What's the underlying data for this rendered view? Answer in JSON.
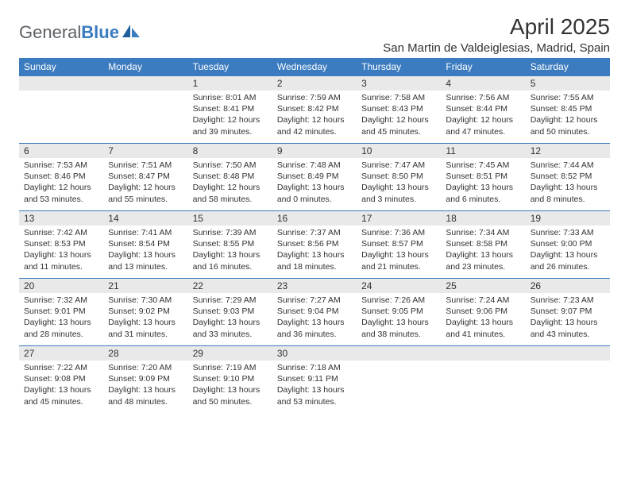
{
  "brand": {
    "part1": "General",
    "part2": "Blue"
  },
  "title": "April 2025",
  "location": "San Martin de Valdeiglesias, Madrid, Spain",
  "theme": {
    "header_bg": "#3b7bbf",
    "header_fg": "#ffffff",
    "daynum_bg": "#e9e9e9",
    "text": "#323232",
    "rule": "#3b7bbf"
  },
  "weekdays": [
    "Sunday",
    "Monday",
    "Tuesday",
    "Wednesday",
    "Thursday",
    "Friday",
    "Saturday"
  ],
  "weeks": [
    [
      {
        "n": "",
        "sunrise": "",
        "sunset": "",
        "daylight": ""
      },
      {
        "n": "",
        "sunrise": "",
        "sunset": "",
        "daylight": ""
      },
      {
        "n": "1",
        "sunrise": "Sunrise: 8:01 AM",
        "sunset": "Sunset: 8:41 PM",
        "daylight": "Daylight: 12 hours and 39 minutes."
      },
      {
        "n": "2",
        "sunrise": "Sunrise: 7:59 AM",
        "sunset": "Sunset: 8:42 PM",
        "daylight": "Daylight: 12 hours and 42 minutes."
      },
      {
        "n": "3",
        "sunrise": "Sunrise: 7:58 AM",
        "sunset": "Sunset: 8:43 PM",
        "daylight": "Daylight: 12 hours and 45 minutes."
      },
      {
        "n": "4",
        "sunrise": "Sunrise: 7:56 AM",
        "sunset": "Sunset: 8:44 PM",
        "daylight": "Daylight: 12 hours and 47 minutes."
      },
      {
        "n": "5",
        "sunrise": "Sunrise: 7:55 AM",
        "sunset": "Sunset: 8:45 PM",
        "daylight": "Daylight: 12 hours and 50 minutes."
      }
    ],
    [
      {
        "n": "6",
        "sunrise": "Sunrise: 7:53 AM",
        "sunset": "Sunset: 8:46 PM",
        "daylight": "Daylight: 12 hours and 53 minutes."
      },
      {
        "n": "7",
        "sunrise": "Sunrise: 7:51 AM",
        "sunset": "Sunset: 8:47 PM",
        "daylight": "Daylight: 12 hours and 55 minutes."
      },
      {
        "n": "8",
        "sunrise": "Sunrise: 7:50 AM",
        "sunset": "Sunset: 8:48 PM",
        "daylight": "Daylight: 12 hours and 58 minutes."
      },
      {
        "n": "9",
        "sunrise": "Sunrise: 7:48 AM",
        "sunset": "Sunset: 8:49 PM",
        "daylight": "Daylight: 13 hours and 0 minutes."
      },
      {
        "n": "10",
        "sunrise": "Sunrise: 7:47 AM",
        "sunset": "Sunset: 8:50 PM",
        "daylight": "Daylight: 13 hours and 3 minutes."
      },
      {
        "n": "11",
        "sunrise": "Sunrise: 7:45 AM",
        "sunset": "Sunset: 8:51 PM",
        "daylight": "Daylight: 13 hours and 6 minutes."
      },
      {
        "n": "12",
        "sunrise": "Sunrise: 7:44 AM",
        "sunset": "Sunset: 8:52 PM",
        "daylight": "Daylight: 13 hours and 8 minutes."
      }
    ],
    [
      {
        "n": "13",
        "sunrise": "Sunrise: 7:42 AM",
        "sunset": "Sunset: 8:53 PM",
        "daylight": "Daylight: 13 hours and 11 minutes."
      },
      {
        "n": "14",
        "sunrise": "Sunrise: 7:41 AM",
        "sunset": "Sunset: 8:54 PM",
        "daylight": "Daylight: 13 hours and 13 minutes."
      },
      {
        "n": "15",
        "sunrise": "Sunrise: 7:39 AM",
        "sunset": "Sunset: 8:55 PM",
        "daylight": "Daylight: 13 hours and 16 minutes."
      },
      {
        "n": "16",
        "sunrise": "Sunrise: 7:37 AM",
        "sunset": "Sunset: 8:56 PM",
        "daylight": "Daylight: 13 hours and 18 minutes."
      },
      {
        "n": "17",
        "sunrise": "Sunrise: 7:36 AM",
        "sunset": "Sunset: 8:57 PM",
        "daylight": "Daylight: 13 hours and 21 minutes."
      },
      {
        "n": "18",
        "sunrise": "Sunrise: 7:34 AM",
        "sunset": "Sunset: 8:58 PM",
        "daylight": "Daylight: 13 hours and 23 minutes."
      },
      {
        "n": "19",
        "sunrise": "Sunrise: 7:33 AM",
        "sunset": "Sunset: 9:00 PM",
        "daylight": "Daylight: 13 hours and 26 minutes."
      }
    ],
    [
      {
        "n": "20",
        "sunrise": "Sunrise: 7:32 AM",
        "sunset": "Sunset: 9:01 PM",
        "daylight": "Daylight: 13 hours and 28 minutes."
      },
      {
        "n": "21",
        "sunrise": "Sunrise: 7:30 AM",
        "sunset": "Sunset: 9:02 PM",
        "daylight": "Daylight: 13 hours and 31 minutes."
      },
      {
        "n": "22",
        "sunrise": "Sunrise: 7:29 AM",
        "sunset": "Sunset: 9:03 PM",
        "daylight": "Daylight: 13 hours and 33 minutes."
      },
      {
        "n": "23",
        "sunrise": "Sunrise: 7:27 AM",
        "sunset": "Sunset: 9:04 PM",
        "daylight": "Daylight: 13 hours and 36 minutes."
      },
      {
        "n": "24",
        "sunrise": "Sunrise: 7:26 AM",
        "sunset": "Sunset: 9:05 PM",
        "daylight": "Daylight: 13 hours and 38 minutes."
      },
      {
        "n": "25",
        "sunrise": "Sunrise: 7:24 AM",
        "sunset": "Sunset: 9:06 PM",
        "daylight": "Daylight: 13 hours and 41 minutes."
      },
      {
        "n": "26",
        "sunrise": "Sunrise: 7:23 AM",
        "sunset": "Sunset: 9:07 PM",
        "daylight": "Daylight: 13 hours and 43 minutes."
      }
    ],
    [
      {
        "n": "27",
        "sunrise": "Sunrise: 7:22 AM",
        "sunset": "Sunset: 9:08 PM",
        "daylight": "Daylight: 13 hours and 45 minutes."
      },
      {
        "n": "28",
        "sunrise": "Sunrise: 7:20 AM",
        "sunset": "Sunset: 9:09 PM",
        "daylight": "Daylight: 13 hours and 48 minutes."
      },
      {
        "n": "29",
        "sunrise": "Sunrise: 7:19 AM",
        "sunset": "Sunset: 9:10 PM",
        "daylight": "Daylight: 13 hours and 50 minutes."
      },
      {
        "n": "30",
        "sunrise": "Sunrise: 7:18 AM",
        "sunset": "Sunset: 9:11 PM",
        "daylight": "Daylight: 13 hours and 53 minutes."
      },
      {
        "n": "",
        "sunrise": "",
        "sunset": "",
        "daylight": ""
      },
      {
        "n": "",
        "sunrise": "",
        "sunset": "",
        "daylight": ""
      },
      {
        "n": "",
        "sunrise": "",
        "sunset": "",
        "daylight": ""
      }
    ]
  ]
}
